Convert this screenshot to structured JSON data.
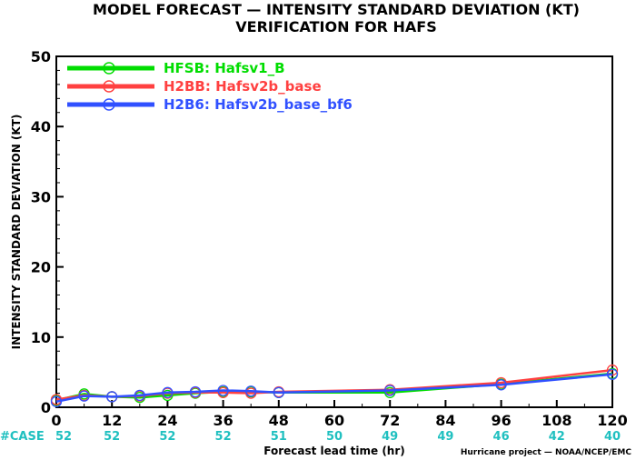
{
  "chart_data": {
    "type": "line",
    "title": "MODEL FORECAST — INTENSITY STANDARD DEVIATION (KT)",
    "subtitle": "VERIFICATION FOR HAFS",
    "xlabel": "Forecast lead time (hr)",
    "ylabel": "INTENSITY STANDARD DEVIATION (KT)",
    "xlim": [
      0,
      120
    ],
    "ylim": [
      0,
      50
    ],
    "x_ticks": [
      0,
      12,
      24,
      36,
      48,
      60,
      72,
      84,
      96,
      108,
      120
    ],
    "y_ticks": [
      0,
      10,
      20,
      30,
      40,
      50
    ],
    "legend_position": "top-left",
    "series": [
      {
        "name": "HFSB: Hafsv1_B",
        "color": "#00dd00",
        "x": [
          0,
          6,
          12,
          18,
          24,
          30,
          36,
          42,
          48,
          72,
          96,
          120
        ],
        "y": [
          1.0,
          1.9,
          1.5,
          1.4,
          1.7,
          2.0,
          2.2,
          2.2,
          2.1,
          2.1,
          3.3,
          4.8
        ]
      },
      {
        "name": "H2BB: Hafsv2b_base",
        "color": "#ff4040",
        "x": [
          0,
          6,
          12,
          18,
          24,
          30,
          36,
          42,
          48,
          72,
          96,
          120
        ],
        "y": [
          1.1,
          1.7,
          1.5,
          1.6,
          2.0,
          2.1,
          2.1,
          2.0,
          2.2,
          2.5,
          3.5,
          5.3
        ]
      },
      {
        "name": "H2B6: Hafsv2b_base_bf6",
        "color": "#3050ff",
        "x": [
          0,
          6,
          12,
          18,
          24,
          30,
          36,
          42,
          48,
          72,
          96,
          120
        ],
        "y": [
          0.8,
          1.6,
          1.5,
          1.7,
          2.1,
          2.2,
          2.4,
          2.3,
          2.1,
          2.4,
          3.2,
          4.7
        ]
      }
    ],
    "case_label": "#CASE",
    "case_counts": [
      {
        "x": 0,
        "n": "52"
      },
      {
        "x": 12,
        "n": "52"
      },
      {
        "x": 24,
        "n": "52"
      },
      {
        "x": 36,
        "n": "52"
      },
      {
        "x": 48,
        "n": "51"
      },
      {
        "x": 60,
        "n": "50"
      },
      {
        "x": 72,
        "n": "49"
      },
      {
        "x": 84,
        "n": "49"
      },
      {
        "x": 96,
        "n": "46"
      },
      {
        "x": 108,
        "n": "42"
      },
      {
        "x": 120,
        "n": "40"
      }
    ],
    "credit": "Hurricane project — NOAA/NCEP/EMC",
    "case_color": "#20c0c0"
  }
}
